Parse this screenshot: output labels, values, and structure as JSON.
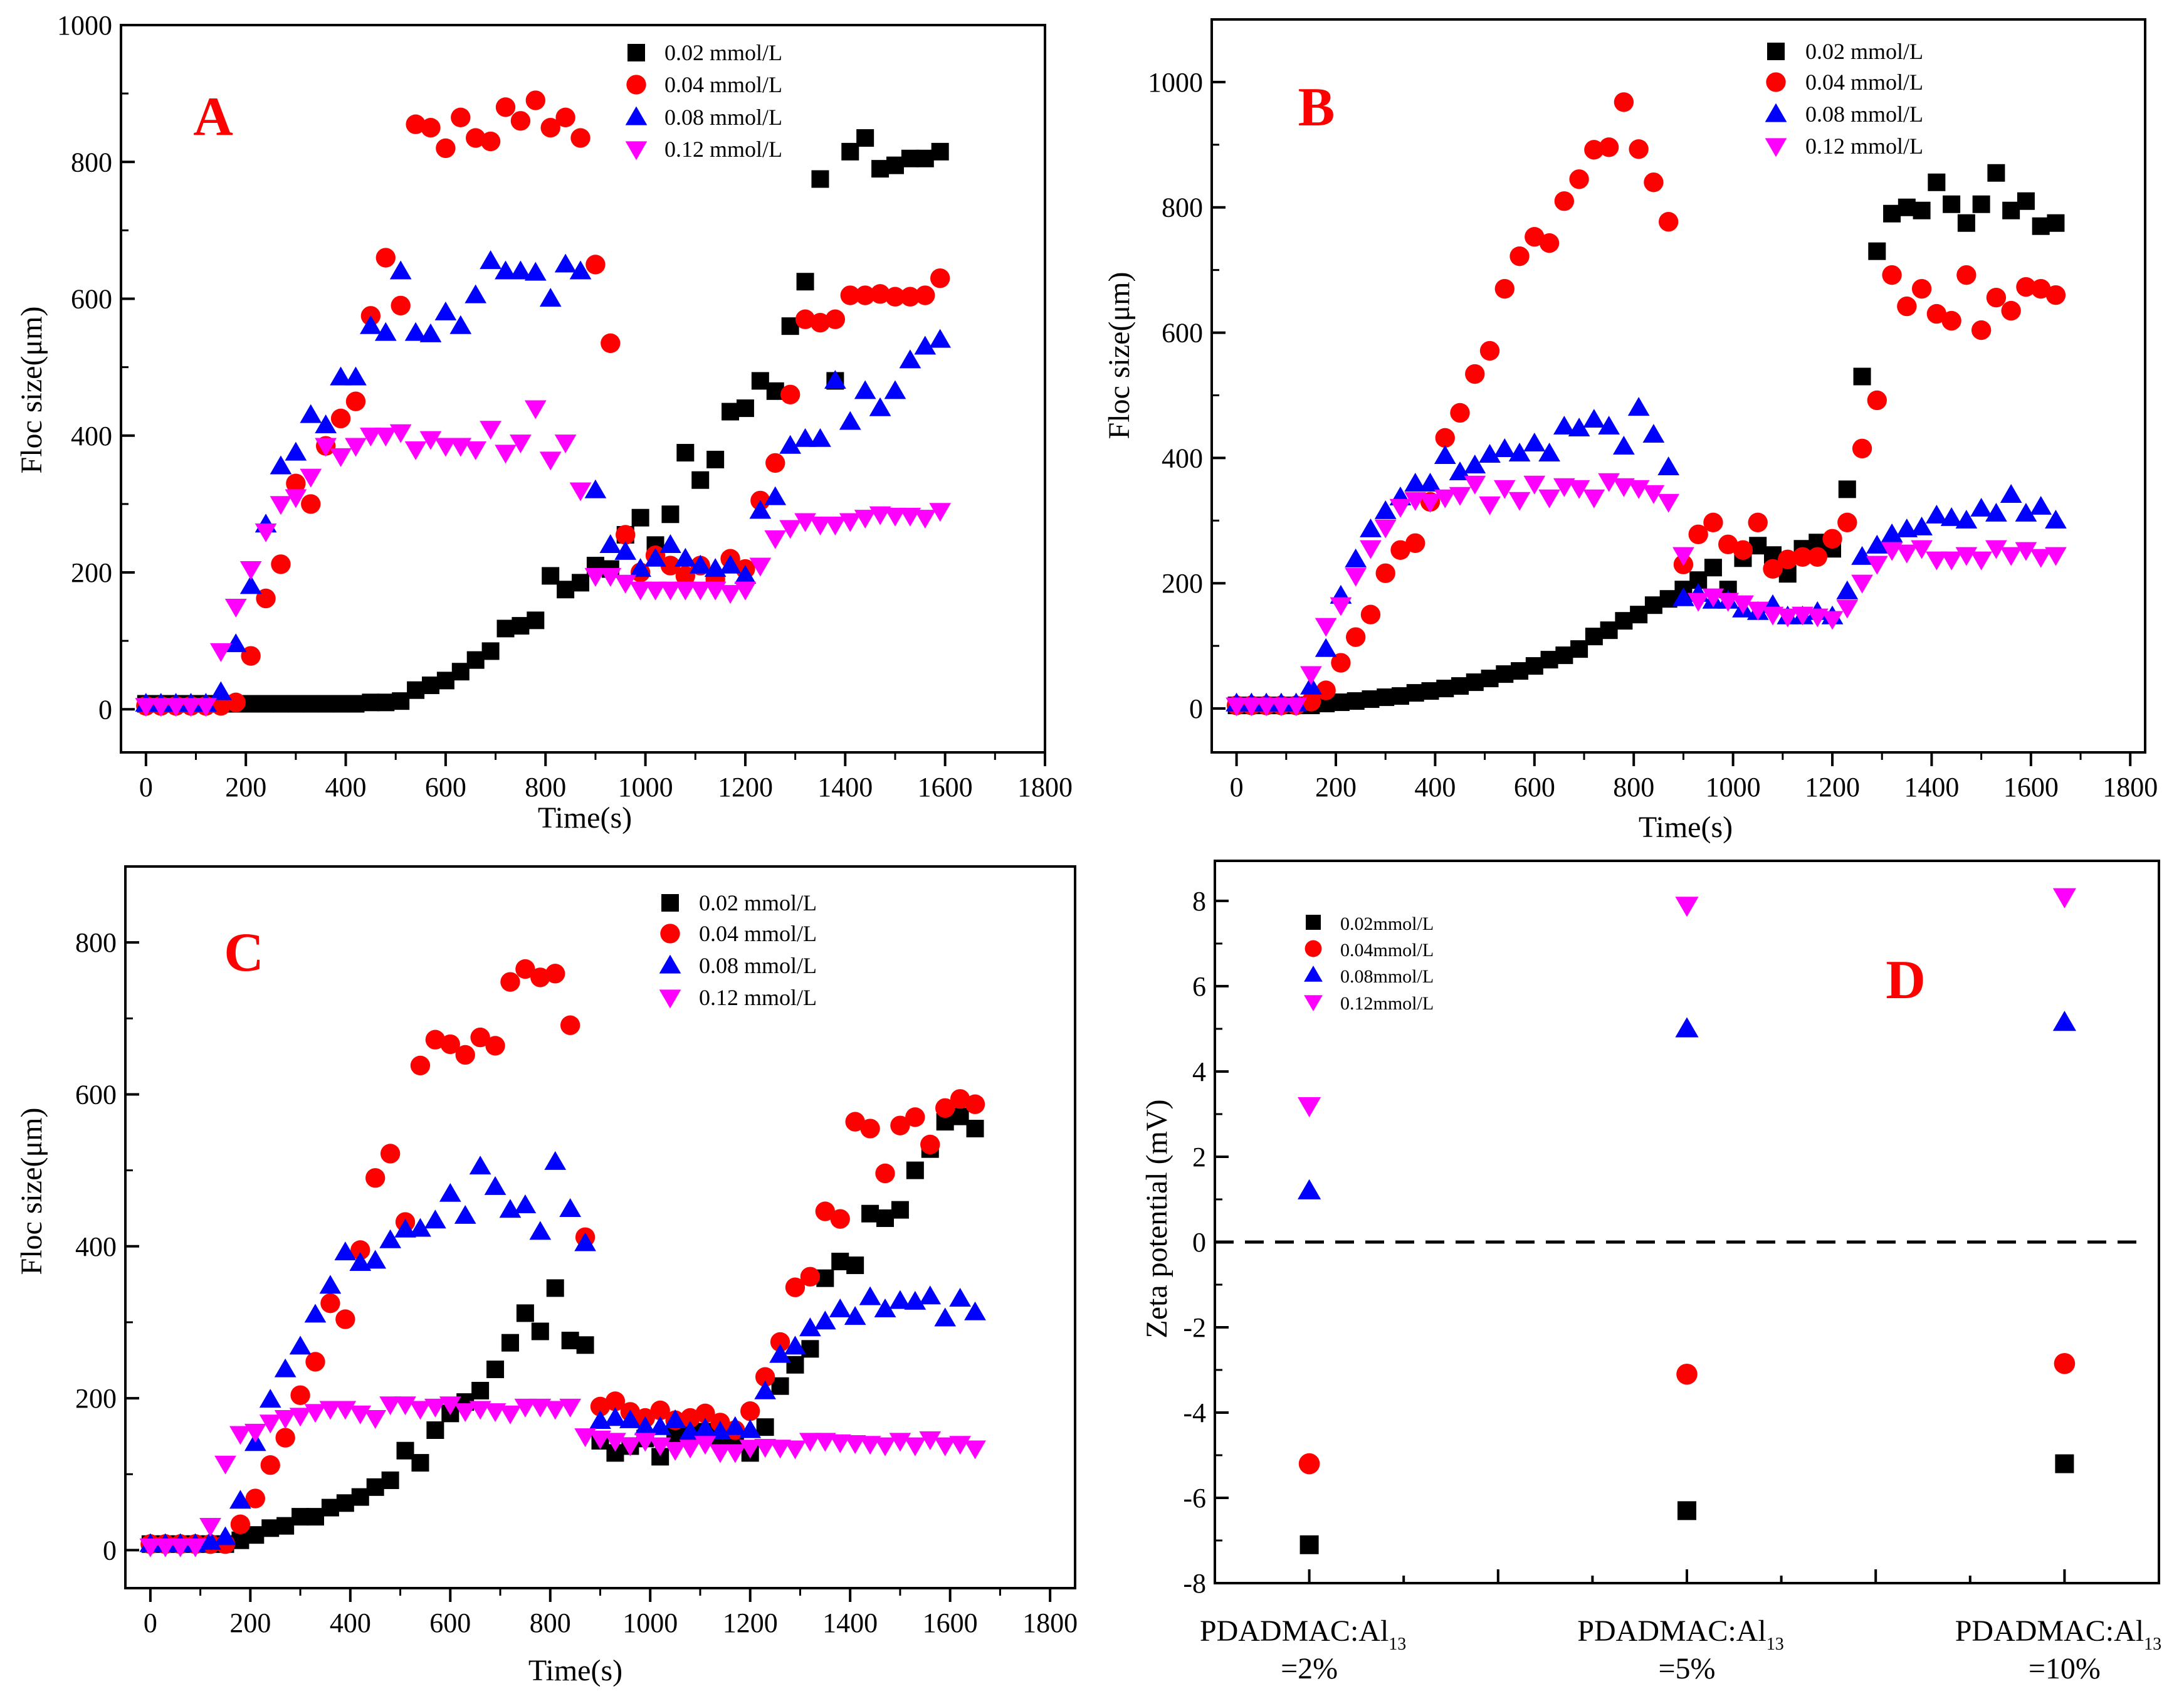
{
  "chart_data": [
    {
      "panel": "A",
      "type": "scatter",
      "title": "A",
      "xlabel": "Time(s)",
      "ylabel": "Floc size(μm)",
      "xlim": [
        -50,
        1800
      ],
      "ylim": [
        -63,
        1000
      ],
      "x_ticks": [
        "0",
        "200",
        "400",
        "600",
        "800",
        "1000",
        "1200",
        "1400",
        "1600",
        "1800"
      ],
      "y_ticks": [
        "0",
        "200",
        "400",
        "600",
        "800",
        "1000"
      ],
      "x_start": 0,
      "x_step": 30,
      "legend_position": "top-right",
      "series": [
        {
          "name": "0.02 mmol/L",
          "marker": "square",
          "color": "#000000",
          "values": [
            8,
            8,
            8,
            8,
            8,
            8,
            8,
            8,
            8,
            8,
            8,
            8,
            8,
            8,
            8,
            10,
            10,
            12,
            28,
            35,
            42,
            55,
            72,
            85,
            118,
            122,
            130,
            195,
            175,
            185,
            210,
            205,
            255,
            280,
            240,
            285,
            375,
            335,
            365,
            435,
            440,
            480,
            465,
            560,
            625,
            775,
            480,
            815,
            835,
            790,
            795,
            805,
            805,
            815
          ]
        },
        {
          "name": "0.04 mmol/L",
          "marker": "circle",
          "color": "#ff0000",
          "values": [
            5,
            5,
            5,
            5,
            5,
            5,
            10,
            78,
            162,
            212,
            330,
            300,
            385,
            425,
            450,
            575,
            660,
            590,
            855,
            850,
            820,
            865,
            835,
            830,
            880,
            860,
            890,
            850,
            865,
            835,
            650,
            535,
            255,
            200,
            225,
            210,
            195,
            210,
            190,
            220,
            205,
            305,
            360,
            460,
            570,
            565,
            570,
            605,
            605,
            607,
            603,
            603,
            605,
            630
          ]
        },
        {
          "name": "0.08 mmol/L",
          "marker": "triangle-up",
          "color": "#0000ff",
          "values": [
            8,
            8,
            8,
            8,
            8,
            25,
            95,
            180,
            270,
            355,
            375,
            430,
            415,
            485,
            485,
            560,
            550,
            640,
            550,
            548,
            580,
            560,
            605,
            655,
            640,
            640,
            638,
            600,
            650,
            640,
            320,
            240,
            230,
            205,
            220,
            240,
            220,
            210,
            205,
            210,
            195,
            290,
            310,
            385,
            395,
            395,
            480,
            420,
            465,
            440,
            465,
            510,
            530,
            540
          ]
        },
        {
          "name": "0.12 mmol/L",
          "marker": "triangle-down",
          "color": "#ff00ff",
          "values": [
            5,
            5,
            5,
            5,
            5,
            85,
            150,
            205,
            260,
            300,
            310,
            340,
            385,
            370,
            385,
            400,
            400,
            405,
            380,
            395,
            385,
            385,
            380,
            410,
            375,
            390,
            440,
            365,
            390,
            320,
            195,
            195,
            185,
            175,
            175,
            175,
            175,
            175,
            175,
            170,
            175,
            210,
            250,
            265,
            275,
            270,
            270,
            275,
            280,
            285,
            283,
            283,
            280,
            290
          ]
        }
      ]
    },
    {
      "panel": "B",
      "type": "scatter",
      "title": "B",
      "xlabel": "Time(s)",
      "ylabel": "Floc size(μm)",
      "xlim": [
        -50,
        1830
      ],
      "ylim": [
        -70,
        1100
      ],
      "x_ticks": [
        "0",
        "200",
        "400",
        "600",
        "800",
        "1000",
        "1200",
        "1400",
        "1600",
        "1800"
      ],
      "y_ticks": [
        "0",
        "200",
        "400",
        "600",
        "800",
        "1000"
      ],
      "x_start": 0,
      "x_step": 30,
      "legend_position": "top-right",
      "series": [
        {
          "name": "0.02 mmol/L",
          "marker": "square",
          "color": "#000000",
          "values": [
            5,
            5,
            5,
            5,
            5,
            5,
            8,
            10,
            12,
            15,
            18,
            20,
            25,
            28,
            32,
            36,
            42,
            48,
            55,
            60,
            68,
            78,
            85,
            95,
            115,
            125,
            140,
            150,
            165,
            175,
            190,
            205,
            225,
            190,
            240,
            260,
            245,
            215,
            255,
            265,
            255,
            350,
            530,
            730,
            790,
            800,
            795,
            840,
            805,
            775,
            805,
            855,
            795,
            810,
            770,
            775
          ]
        },
        {
          "name": "0.04 mmol/L",
          "marker": "circle",
          "color": "#ff0000",
          "values": [
            5,
            5,
            5,
            5,
            5,
            11,
            29,
            73,
            114,
            150,
            216,
            253,
            264,
            330,
            432,
            472,
            534,
            571,
            670,
            722,
            753,
            743,
            810,
            845,
            892,
            896,
            968,
            893,
            840,
            777,
            230,
            278,
            297,
            262,
            253,
            297,
            223,
            238,
            242,
            242,
            271,
            297,
            415,
            492,
            692,
            642,
            670,
            630,
            619,
            692,
            604,
            656,
            635,
            673,
            670,
            660
          ]
        },
        {
          "name": "0.08 mmol/L",
          "marker": "triangle-up",
          "color": "#0000ff",
          "values": [
            8,
            8,
            8,
            8,
            8,
            35,
            95,
            180,
            238,
            286,
            315,
            337,
            359,
            359,
            403,
            377,
            388,
            405,
            414,
            407,
            423,
            407,
            450,
            447,
            461,
            450,
            418,
            480,
            437,
            385,
            176,
            183,
            172,
            172,
            158,
            154,
            165,
            147,
            147,
            154,
            147,
            187,
            242,
            260,
            278,
            286,
            289,
            308,
            304,
            300,
            319,
            311,
            341,
            311,
            322,
            300
          ]
        },
        {
          "name": "0.12 mmol/L",
          "marker": "triangle-down",
          "color": "#ff00ff",
          "values": [
            5,
            5,
            5,
            5,
            5,
            55,
            132,
            165,
            212,
            256,
            289,
            322,
            333,
            330,
            337,
            341,
            359,
            326,
            352,
            333,
            359,
            337,
            355,
            352,
            337,
            363,
            355,
            352,
            344,
            330,
            245,
            172,
            179,
            172,
            168,
            158,
            150,
            147,
            150,
            147,
            143,
            161,
            201,
            231,
            253,
            249,
            256,
            238,
            238,
            245,
            238,
            256,
            245,
            253,
            242,
            245
          ]
        }
      ]
    },
    {
      "panel": "C",
      "type": "scatter",
      "title": "C",
      "xlabel": "Time(s)",
      "ylabel": "Floc size(μm)",
      "xlim": [
        -50,
        1850
      ],
      "ylim": [
        -50,
        900
      ],
      "x_ticks": [
        "0",
        "200",
        "400",
        "600",
        "800",
        "1000",
        "1200",
        "1400",
        "1600",
        "1800"
      ],
      "y_ticks": [
        "0",
        "200",
        "400",
        "600",
        "800"
      ],
      "x_start": 0,
      "x_step": 30,
      "legend_position": "top-right",
      "series": [
        {
          "name": "0.02 mmol/L",
          "marker": "square",
          "color": "#000000",
          "values": [
            8,
            8,
            8,
            8,
            8,
            8,
            13,
            20,
            29,
            32,
            44,
            44,
            56,
            62,
            70,
            83,
            92,
            131,
            115,
            158,
            180,
            195,
            210,
            238,
            273,
            312,
            288,
            345,
            276,
            270,
            144,
            128,
            137,
            147,
            123,
            150,
            156,
            156,
            147,
            150,
            128,
            162,
            216,
            244,
            265,
            358,
            380,
            375,
            443,
            437,
            448,
            500,
            528,
            564,
            571,
            555
          ]
        },
        {
          "name": "0.04 mmol/L",
          "marker": "circle",
          "color": "#ff0000",
          "values": [
            8,
            8,
            8,
            8,
            8,
            8,
            34,
            68,
            112,
            148,
            204,
            248,
            325,
            304,
            395,
            490,
            522,
            432,
            638,
            672,
            666,
            652,
            675,
            664,
            748,
            765,
            754,
            759,
            691,
            412,
            189,
            196,
            182,
            174,
            184,
            171,
            174,
            180,
            168,
            158,
            183,
            228,
            274,
            346,
            360,
            446,
            436,
            564,
            555,
            496,
            559,
            570,
            534,
            582,
            594,
            587
          ]
        },
        {
          "name": "0.08 mmol/L",
          "marker": "triangle-up",
          "color": "#0000ff",
          "values": [
            8,
            8,
            8,
            8,
            11,
            17,
            65,
            141,
            198,
            238,
            268,
            310,
            348,
            392,
            378,
            381,
            408,
            422,
            423,
            434,
            469,
            440,
            505,
            478,
            448,
            454,
            419,
            511,
            449,
            404,
            170,
            174,
            171,
            162,
            162,
            171,
            156,
            160,
            156,
            162,
            158,
            209,
            257,
            268,
            292,
            301,
            317,
            307,
            333,
            317,
            328,
            327,
            334,
            305,
            331,
            313
          ]
        },
        {
          "name": "0.12 mmol/L",
          "marker": "triangle-down",
          "color": "#ff00ff",
          "values": [
            5,
            5,
            5,
            5,
            32,
            114,
            153,
            156,
            168,
            174,
            177,
            182,
            186,
            186,
            180,
            174,
            192,
            192,
            186,
            189,
            192,
            183,
            186,
            183,
            180,
            189,
            189,
            186,
            189,
            150,
            147,
            144,
            138,
            144,
            138,
            132,
            135,
            140,
            129,
            129,
            135,
            136,
            135,
            134,
            144,
            144,
            142,
            141,
            140,
            138,
            144,
            138,
            146,
            138,
            140,
            134
          ]
        }
      ]
    },
    {
      "panel": "D",
      "type": "scatter",
      "title": "D",
      "xlabel": "",
      "ylabel": "Zeta potential (mV)",
      "xlim": [
        0,
        10
      ],
      "ylim": [
        -8,
        8.94
      ],
      "y_ticks": [
        "-8",
        "-6",
        "-4",
        "-2",
        "0",
        "2",
        "4",
        "6",
        "8"
      ],
      "categories": [
        {
          "main": "PDADMAC:Al",
          "sub": "13",
          "ratio": "=2%"
        },
        {
          "main": "PDADMAC:Al",
          "sub": "13",
          "ratio": "=5%"
        },
        {
          "main": "PDADMAC:Al",
          "sub": "13",
          "ratio": "=10%"
        }
      ],
      "category_x": [
        1,
        5,
        9
      ],
      "reference_line_y": 0,
      "legend_position": "top-left",
      "series": [
        {
          "name": "0.02mmol/L",
          "marker": "square",
          "color": "#000000",
          "values": [
            -7.1,
            -6.3,
            -5.2
          ]
        },
        {
          "name": "0.04mmol/L",
          "marker": "circle",
          "color": "#ff0000",
          "values": [
            -5.2,
            -3.1,
            -2.85
          ]
        },
        {
          "name": "0.08mmol/L",
          "marker": "triangle-up",
          "color": "#0000ff",
          "values": [
            1.2,
            5.0,
            5.15
          ]
        },
        {
          "name": "0.12mmol/L",
          "marker": "triangle-down",
          "color": "#ff00ff",
          "values": [
            3.2,
            7.9,
            8.1
          ]
        }
      ]
    }
  ]
}
